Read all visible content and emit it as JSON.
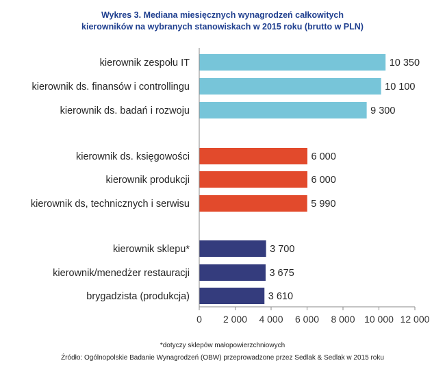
{
  "chart_data": {
    "type": "bar",
    "orientation": "horizontal",
    "title_line1": "Wykres 3. Mediana miesięcznych wynagrodzeń całkowitych",
    "title_line2": "kierowników na wybranych stanowiskach w 2015 roku (brutto w PLN)",
    "xlim": [
      0,
      12000
    ],
    "x_ticks": [
      0,
      2000,
      4000,
      6000,
      8000,
      10000,
      12000
    ],
    "x_tick_labels": [
      "0",
      "2 000",
      "4 000",
      "6 000",
      "8 000",
      "10 000",
      "12 000"
    ],
    "bars": [
      {
        "category": "kierownik zespołu IT",
        "value": 10350,
        "label": "10 350",
        "group": 0
      },
      {
        "category": "kierownik ds. finansów i controllingu",
        "value": 10100,
        "label": "10 100",
        "group": 0
      },
      {
        "category": "kierownik ds. badań i rozwoju",
        "value": 9300,
        "label": "9 300",
        "group": 0
      },
      {
        "category": "kierownik ds. księgowości",
        "value": 6000,
        "label": "6 000",
        "group": 1
      },
      {
        "category": "kierownik produkcji",
        "value": 6000,
        "label": "6 000",
        "group": 1
      },
      {
        "category": "kierownik ds, technicznych i serwisu",
        "value": 5990,
        "label": "5 990",
        "group": 1
      },
      {
        "category": "kierownik sklepu*",
        "value": 3700,
        "label": "3 700",
        "group": 2
      },
      {
        "category": "kierownik/menedżer restauracji",
        "value": 3675,
        "label": "3 675",
        "group": 2
      },
      {
        "category": "brygadzista (produkcja)",
        "value": 3610,
        "label": "3 610",
        "group": 2
      }
    ],
    "group_colors": [
      "#77c5d9",
      "#e24a2c",
      "#343c7d"
    ],
    "footnote": "*dotyczy sklepów małopowierzchniowych",
    "source": "Źródło: Ogólnopolskie Badanie Wynagrodzeń (OBW) przeprowadzone przez Sedlak & Sedlak w 2015 roku"
  }
}
